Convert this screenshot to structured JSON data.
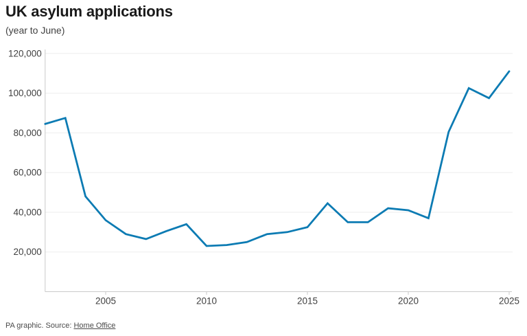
{
  "footer": {
    "credit": "PA graphic. Source:",
    "source_link": "Home Office"
  },
  "chart_data": {
    "type": "line",
    "title": "UK asylum applications",
    "subtitle": "(year to June)",
    "x": [
      2002,
      2003,
      2004,
      2005,
      2006,
      2007,
      2008,
      2009,
      2010,
      2011,
      2012,
      2013,
      2014,
      2015,
      2016,
      2017,
      2018,
      2019,
      2020,
      2021,
      2022,
      2023,
      2024,
      2025
    ],
    "values": [
      84500,
      87500,
      48000,
      36000,
      29000,
      26500,
      30500,
      34000,
      23000,
      23500,
      25000,
      29000,
      30000,
      32500,
      44500,
      35000,
      35000,
      42000,
      41000,
      37000,
      80500,
      102500,
      97500,
      111000
    ],
    "xlabel": "",
    "ylabel": "",
    "xlim": [
      2002,
      2025
    ],
    "ylim": [
      0,
      122000
    ],
    "yticks": [
      20000,
      40000,
      60000,
      80000,
      100000,
      120000
    ],
    "ytick_labels": [
      "20,000",
      "40,000",
      "60,000",
      "80,000",
      "100,000",
      "120,000"
    ],
    "xticks": [
      2005,
      2010,
      2015,
      2020,
      2025
    ],
    "xtick_labels": [
      "2005",
      "2010",
      "2015",
      "2020",
      "2025"
    ],
    "grid": "horizontal-only",
    "legend": false,
    "line_color": "#0c7bb3",
    "grid_color": "#ededed",
    "axis_color": "#c9c9c9",
    "tick_label_color": "#404040"
  }
}
